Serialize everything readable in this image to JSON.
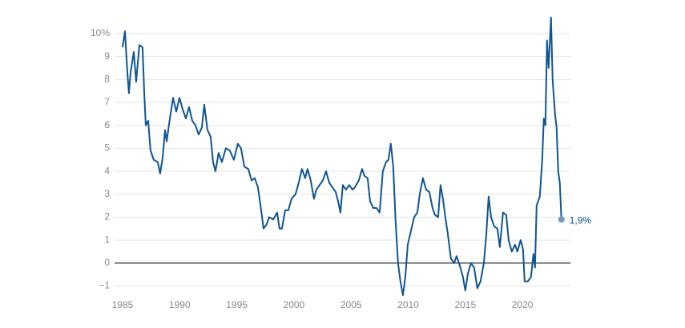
{
  "chart_data": {
    "type": "line",
    "xlim": [
      1984.3,
      2024.2
    ],
    "xticks": [
      1985,
      1990,
      1995,
      2000,
      2005,
      2010,
      2015,
      2020
    ],
    "ylim": [
      -1.4,
      10.8
    ],
    "yticks": [
      {
        "value": -1,
        "label": "−1"
      },
      0,
      1,
      2,
      3,
      4,
      5,
      6,
      7,
      8,
      9,
      {
        "value": 10,
        "label": "10%"
      }
    ],
    "grid": true,
    "zero_line_color": "#000000",
    "series": [
      {
        "color": "#0f5592",
        "x": [
          1985.0,
          1985.21,
          1985.42,
          1985.56,
          1985.7,
          1985.98,
          1986.19,
          1986.47,
          1986.75,
          1986.89,
          1987.03,
          1987.24,
          1987.45,
          1987.73,
          1988.08,
          1988.29,
          1988.51,
          1988.72,
          1988.86,
          1989.14,
          1989.42,
          1989.7,
          1989.98,
          1990.26,
          1990.54,
          1990.82,
          1991.1,
          1991.38,
          1991.66,
          1991.94,
          1992.15,
          1992.43,
          1992.71,
          1992.92,
          1993.13,
          1993.41,
          1993.69,
          1994.04,
          1994.39,
          1994.74,
          1995.09,
          1995.37,
          1995.66,
          1996.01,
          1996.29,
          1996.57,
          1996.85,
          1997.13,
          1997.34,
          1997.62,
          1997.83,
          1998.18,
          1998.53,
          1998.74,
          1998.95,
          1999.23,
          1999.51,
          1999.79,
          2000.14,
          2000.42,
          2000.7,
          2000.98,
          2001.19,
          2001.47,
          2001.75,
          2001.96,
          2002.24,
          2002.53,
          2002.81,
          2003.09,
          2003.37,
          2003.65,
          2003.86,
          2004.07,
          2004.28,
          2004.56,
          2004.84,
          2005.12,
          2005.33,
          2005.68,
          2005.96,
          2006.17,
          2006.45,
          2006.66,
          2006.94,
          2007.22,
          2007.5,
          2007.78,
          2008.06,
          2008.27,
          2008.48,
          2008.69,
          2008.9,
          2009.11,
          2009.32,
          2009.54,
          2009.75,
          2009.96,
          2010.24,
          2010.52,
          2010.8,
          2011.01,
          2011.29,
          2011.57,
          2011.85,
          2012.13,
          2012.34,
          2012.62,
          2012.83,
          2013.04,
          2013.25,
          2013.46,
          2013.74,
          2014.02,
          2014.23,
          2014.51,
          2014.79,
          2015.0,
          2015.21,
          2015.49,
          2015.77,
          2016.05,
          2016.33,
          2016.62,
          2016.83,
          2017.04,
          2017.25,
          2017.53,
          2017.81,
          2018.02,
          2018.3,
          2018.58,
          2018.79,
          2019.07,
          2019.35,
          2019.56,
          2019.84,
          2020.05,
          2020.19,
          2020.47,
          2020.75,
          2020.96,
          2021.1,
          2021.24,
          2021.52,
          2021.73,
          2021.87,
          2022.01,
          2022.15,
          2022.29,
          2022.5,
          2022.64,
          2022.85,
          2022.99,
          2023.13,
          2023.27,
          2023.41
        ],
        "values": [
          9.4,
          10.1,
          8.3,
          7.4,
          8.3,
          9.2,
          7.9,
          9.5,
          9.4,
          7.5,
          6.0,
          6.2,
          4.9,
          4.5,
          4.4,
          3.9,
          4.6,
          5.8,
          5.3,
          6.3,
          7.2,
          6.6,
          7.2,
          6.7,
          6.3,
          6.8,
          6.2,
          6.0,
          5.6,
          5.9,
          6.9,
          5.8,
          5.5,
          4.4,
          4.0,
          4.8,
          4.4,
          5.0,
          4.9,
          4.5,
          5.2,
          5.0,
          4.2,
          4.1,
          3.6,
          3.7,
          3.3,
          2.3,
          1.5,
          1.7,
          2.0,
          1.9,
          2.2,
          1.5,
          1.5,
          2.3,
          2.3,
          2.8,
          3.0,
          3.5,
          4.1,
          3.7,
          4.1,
          3.6,
          2.8,
          3.2,
          3.4,
          3.6,
          4.0,
          3.5,
          3.3,
          3.1,
          2.7,
          2.2,
          3.4,
          3.2,
          3.4,
          3.2,
          3.3,
          3.6,
          4.1,
          3.8,
          3.7,
          2.7,
          2.4,
          2.4,
          2.2,
          4.0,
          4.4,
          4.5,
          5.2,
          4.2,
          1.8,
          0.0,
          -0.8,
          -1.4,
          -0.6,
          0.8,
          1.4,
          2.0,
          2.2,
          3.0,
          3.7,
          3.2,
          3.1,
          2.4,
          2.1,
          2.0,
          3.4,
          2.8,
          2.0,
          1.3,
          0.2,
          0.0,
          0.3,
          -0.1,
          -0.6,
          -1.2,
          -0.5,
          0.0,
          -0.2,
          -1.1,
          -0.8,
          0.0,
          1.2,
          2.9,
          2.0,
          1.6,
          1.5,
          0.7,
          2.2,
          2.1,
          1.0,
          0.5,
          0.8,
          0.5,
          1.0,
          0.6,
          -0.8,
          -0.8,
          -0.6,
          0.4,
          -0.2,
          2.5,
          2.9,
          4.5,
          6.3,
          6.0,
          9.7,
          8.5,
          10.7,
          8.0,
          6.5,
          5.9,
          4.0,
          3.5,
          1.9
        ]
      }
    ],
    "annotations": [
      {
        "x": 2023.41,
        "y": 1.9,
        "label": "1,9%",
        "color": "#6f9bc4"
      }
    ]
  }
}
